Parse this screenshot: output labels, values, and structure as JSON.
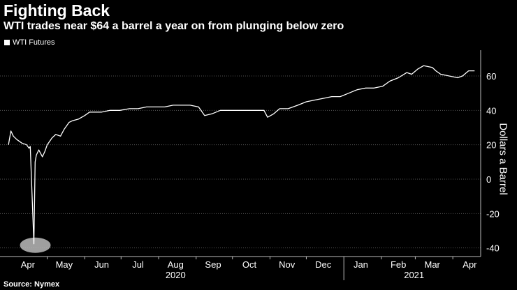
{
  "title": "Fighting Back",
  "subtitle": "WTI trades near $64 a barrel a year on from plunging below zero",
  "legend": {
    "label": "WTI Futures",
    "color": "#ffffff"
  },
  "source": "Source: Nymex",
  "colors": {
    "background": "#000000",
    "line": "#ffffff",
    "grid": "#555555",
    "text": "#ffffff",
    "highlight": "#bbbbbb"
  },
  "chart_data": {
    "type": "line",
    "title": "Fighting Back",
    "subtitle": "WTI trades near $64 a barrel a year on from plunging below zero",
    "ylabel": "Dollars a Barrel",
    "xlabel": "",
    "ylim": [
      -45,
      75
    ],
    "yticks": [
      60,
      40,
      20,
      0,
      -20,
      -40
    ],
    "grid": true,
    "legend": "top-left",
    "month_labels": [
      "Apr",
      "May",
      "Jun",
      "Jul",
      "Aug",
      "Sep",
      "Oct",
      "Nov",
      "Dec",
      "Jan",
      "Feb",
      "Mar",
      "Apr"
    ],
    "year_labels": [
      "2020",
      "2021"
    ],
    "annotation": "circle highlighting the plunge to about -37.6",
    "series": [
      {
        "name": "WTI Futures",
        "x": [
          "2020-03-30",
          "2020-04-01",
          "2020-04-03",
          "2020-04-06",
          "2020-04-08",
          "2020-04-10",
          "2020-04-14",
          "2020-04-16",
          "2020-04-17",
          "2020-04-20",
          "2020-04-21",
          "2020-04-22",
          "2020-04-24",
          "2020-04-27",
          "2020-04-29",
          "2020-05-01",
          "2020-05-05",
          "2020-05-08",
          "2020-05-12",
          "2020-05-15",
          "2020-05-19",
          "2020-05-22",
          "2020-05-27",
          "2020-06-01",
          "2020-06-05",
          "2020-06-10",
          "2020-06-15",
          "2020-06-22",
          "2020-06-30",
          "2020-07-08",
          "2020-07-15",
          "2020-07-22",
          "2020-07-30",
          "2020-08-06",
          "2020-08-13",
          "2020-08-20",
          "2020-08-27",
          "2020-09-03",
          "2020-09-08",
          "2020-09-14",
          "2020-09-21",
          "2020-09-28",
          "2020-10-06",
          "2020-10-13",
          "2020-10-20",
          "2020-10-27",
          "2020-10-30",
          "2020-11-04",
          "2020-11-09",
          "2020-11-16",
          "2020-11-24",
          "2020-12-01",
          "2020-12-08",
          "2020-12-15",
          "2020-12-22",
          "2020-12-29",
          "2021-01-05",
          "2021-01-12",
          "2021-01-19",
          "2021-01-26",
          "2021-02-02",
          "2021-02-08",
          "2021-02-15",
          "2021-02-22",
          "2021-02-26",
          "2021-03-03",
          "2021-03-08",
          "2021-03-15",
          "2021-03-18",
          "2021-03-22",
          "2021-03-29",
          "2021-04-05",
          "2021-04-09",
          "2021-04-14",
          "2021-04-19"
        ],
        "values": [
          20,
          28,
          25,
          23,
          22,
          21,
          20,
          18,
          19,
          -37.6,
          10,
          14,
          17,
          13,
          16,
          20,
          24,
          26,
          25,
          29,
          33,
          34,
          35,
          37,
          39,
          39,
          39,
          40,
          40,
          41,
          41,
          42,
          42,
          42,
          43,
          43,
          43,
          42,
          37,
          38,
          40,
          40,
          40,
          40,
          40,
          40,
          36,
          38,
          41,
          41,
          43,
          45,
          46,
          47,
          48,
          48,
          50,
          52,
          53,
          53,
          54,
          57,
          59,
          62,
          61,
          64,
          66,
          65,
          63,
          61,
          60,
          59,
          60,
          63,
          63
        ]
      }
    ]
  }
}
